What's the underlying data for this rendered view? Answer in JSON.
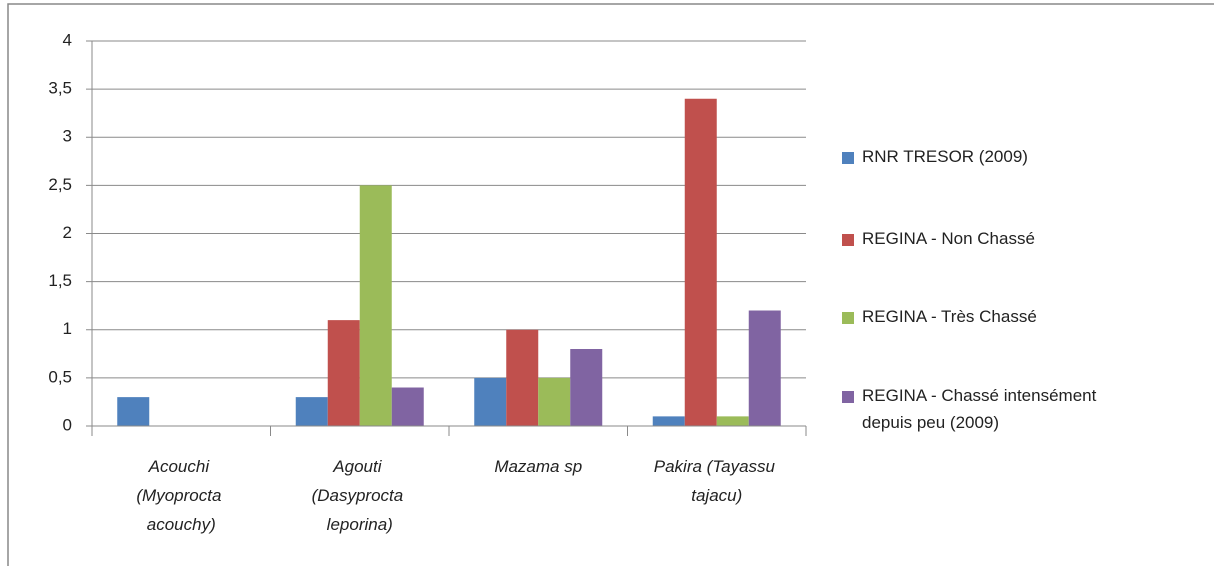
{
  "chart_data": {
    "type": "bar",
    "categories": [
      "Acouchi (Myoprocta acouchy)",
      "Agouti (Dasyprocta leporina)",
      "Mazama sp",
      "Pakira (Tayassu tajacu)"
    ],
    "series": [
      {
        "name": "RNR TRESOR (2009)",
        "color": "#4f81bd",
        "values": [
          0.3,
          0.3,
          0.5,
          0.1
        ]
      },
      {
        "name": "REGINA - Non Chassé",
        "color": "#c0504d",
        "values": [
          0,
          1.1,
          1.0,
          3.4
        ]
      },
      {
        "name": "REGINA - Très Chassé",
        "color": "#9bbb59",
        "values": [
          0,
          2.5,
          0.5,
          0.1
        ]
      },
      {
        "name": "REGINA -  Chassé intensément depuis peu (2009)",
        "color": "#8064a2",
        "values": [
          0,
          0.4,
          0.8,
          1.2
        ]
      }
    ],
    "ylim": [
      0,
      4
    ],
    "yticks": [
      0,
      {
        "value": 0.5,
        "label": "0,5"
      },
      1,
      {
        "value": 1.5,
        "label": "1,5"
      },
      2,
      {
        "value": 2.5,
        "label": "2,5"
      },
      3,
      {
        "value": 3.5,
        "label": "3,5"
      },
      4
    ],
    "grid": true,
    "legend": "right"
  }
}
